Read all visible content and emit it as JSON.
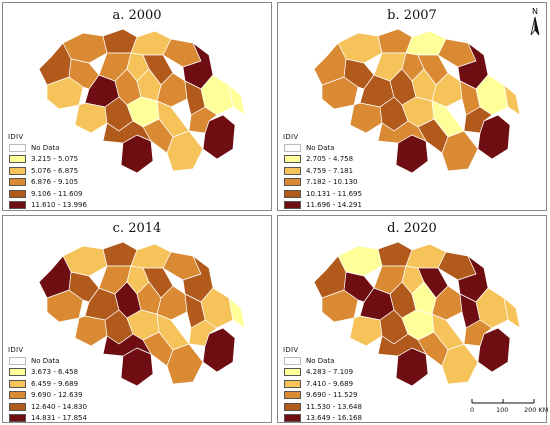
{
  "legend_title": "IDIV",
  "no_data_label": "No Data",
  "no_data_color": "#ffffff",
  "palette": [
    "#ffff99",
    "#f6c25a",
    "#d98a32",
    "#b15a1c",
    "#6e0d12"
  ],
  "panels": [
    {
      "id": "a",
      "title": "a. 2000",
      "classes": [
        {
          "label": "3.215 - 5.075",
          "color": "#ffff99"
        },
        {
          "label": "5.076 - 6.875",
          "color": "#f6c25a"
        },
        {
          "label": "6.876 - 9.105",
          "color": "#d98a32"
        },
        {
          "label": "9.106 - 11.609",
          "color": "#b15a1c"
        },
        {
          "label": "11.610 - 13.996",
          "color": "#6e0d12"
        }
      ],
      "region_classes": [
        2,
        3,
        1,
        2,
        4,
        1,
        2,
        3,
        4,
        2,
        1,
        3,
        2,
        2,
        1,
        0,
        3,
        4,
        2,
        0,
        1,
        3,
        0,
        1,
        4,
        2,
        3,
        1
      ]
    },
    {
      "id": "b",
      "title": "b. 2007",
      "classes": [
        {
          "label": "2.705 - 4.758",
          "color": "#ffff99"
        },
        {
          "label": "4.759 - 7.181",
          "color": "#f6c25a"
        },
        {
          "label": "7.182 - 10.130",
          "color": "#d98a32"
        },
        {
          "label": "10.131 - 11.695",
          "color": "#b15a1c"
        },
        {
          "label": "11.696 - 14.291",
          "color": "#6e0d12"
        }
      ],
      "region_classes": [
        1,
        2,
        0,
        2,
        4,
        2,
        3,
        2,
        3,
        1,
        2,
        2,
        3,
        1,
        1,
        0,
        2,
        4,
        3,
        1,
        2,
        3,
        1,
        0,
        4,
        3,
        2,
        2
      ]
    },
    {
      "id": "c",
      "title": "c. 2014",
      "classes": [
        {
          "label": "3.673 - 6.458",
          "color": "#ffff99"
        },
        {
          "label": "6.459 - 9.689",
          "color": "#f6c25a"
        },
        {
          "label": "9.690 - 12.639",
          "color": "#d98a32"
        },
        {
          "label": "12.640 - 14.830",
          "color": "#b15a1c"
        },
        {
          "label": "14.831 - 17.854",
          "color": "#6e0d12"
        }
      ],
      "region_classes": [
        1,
        3,
        1,
        2,
        3,
        2,
        3,
        4,
        3,
        2,
        1,
        3,
        4,
        2,
        2,
        1,
        3,
        4,
        1,
        0,
        2,
        3,
        1,
        1,
        4,
        2,
        4,
        2
      ]
    },
    {
      "id": "d",
      "title": "d. 2020",
      "classes": [
        {
          "label": "4.283 - 7.109",
          "color": "#ffff99"
        },
        {
          "label": "7.410 - 9.689",
          "color": "#f6c25a"
        },
        {
          "label": "9.690 - 11.529",
          "color": "#d98a32"
        },
        {
          "label": "11.530 - 13.648",
          "color": "#b15a1c"
        },
        {
          "label": "13.649 - 16.168",
          "color": "#6e0d12"
        }
      ],
      "region_classes": [
        0,
        3,
        1,
        3,
        4,
        2,
        4,
        3,
        4,
        2,
        1,
        4,
        3,
        2,
        0,
        1,
        4,
        4,
        2,
        1,
        1,
        3,
        0,
        1,
        4,
        2,
        3,
        1
      ]
    }
  ],
  "north_arrow": {
    "label": "N"
  },
  "scale_bar": {
    "ticks": [
      "0",
      "100",
      "200 KM"
    ]
  }
}
